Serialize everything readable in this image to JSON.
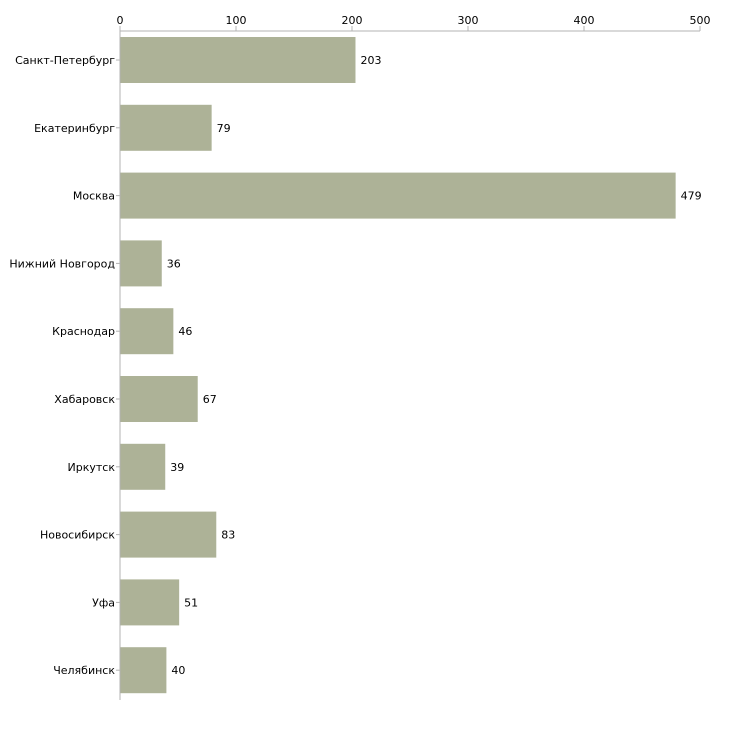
{
  "colors": {
    "bar": "#adb297",
    "axis": "#b3b3b3",
    "text": "#000000"
  },
  "chart_data": {
    "type": "bar",
    "orientation": "horizontal",
    "title": "",
    "xlabel": "",
    "ylabel": "",
    "xlim": [
      0,
      500
    ],
    "ticks": [
      "0",
      "100",
      "200",
      "300",
      "400",
      "500"
    ],
    "tick_values": [
      0,
      100,
      200,
      300,
      400,
      500
    ],
    "axis_position": "top",
    "grid": false,
    "categories": [
      "Санкт-Петербург",
      "Екатеринбург",
      "Москва",
      "Нижний Новгород",
      "Краснодар",
      "Хабаровск",
      "Иркутск",
      "Новосибирск",
      "Уфа",
      "Челябинск"
    ],
    "values": [
      203,
      79,
      479,
      36,
      46,
      67,
      39,
      83,
      51,
      40
    ],
    "data_labels": [
      "203",
      "79",
      "479",
      "36",
      "46",
      "67",
      "39",
      "83",
      "51",
      "40"
    ]
  }
}
